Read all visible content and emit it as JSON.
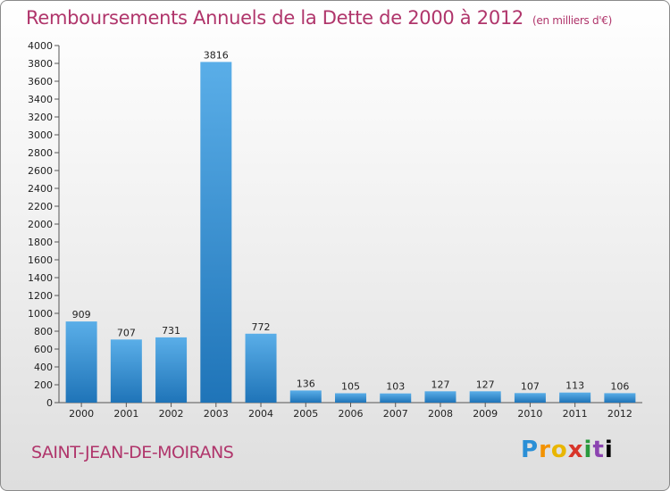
{
  "header": {
    "title": "Remboursements Annuels de la Dette de 2000 à 2012",
    "subtitle": "(en milliers d'€)"
  },
  "footer": {
    "commune": "SAINT-JEAN-DE-MOIRANS",
    "logo_letters": [
      "P",
      "r",
      "o",
      "x",
      "i",
      "t",
      "i"
    ]
  },
  "colors": {
    "title": "#b0356b",
    "bar_light": "#5aaee8",
    "bar_dark": "#1f74b8"
  },
  "chart_data": {
    "type": "bar",
    "title": "Remboursements Annuels de la Dette de 2000 à 2012",
    "subtitle": "(en milliers d'€)",
    "xlabel": "",
    "ylabel": "",
    "categories": [
      "2000",
      "2001",
      "2002",
      "2003",
      "2004",
      "2005",
      "2006",
      "2007",
      "2008",
      "2009",
      "2010",
      "2011",
      "2012"
    ],
    "values": [
      909,
      707,
      731,
      3816,
      772,
      136,
      105,
      103,
      127,
      127,
      107,
      113,
      106
    ],
    "ylim": [
      0,
      4000
    ],
    "yticks": [
      0,
      200,
      400,
      600,
      800,
      1000,
      1200,
      1400,
      1600,
      1800,
      2000,
      2200,
      2400,
      2600,
      2800,
      3000,
      3200,
      3400,
      3600,
      3800,
      4000
    ],
    "grid": false,
    "legend": "none"
  }
}
